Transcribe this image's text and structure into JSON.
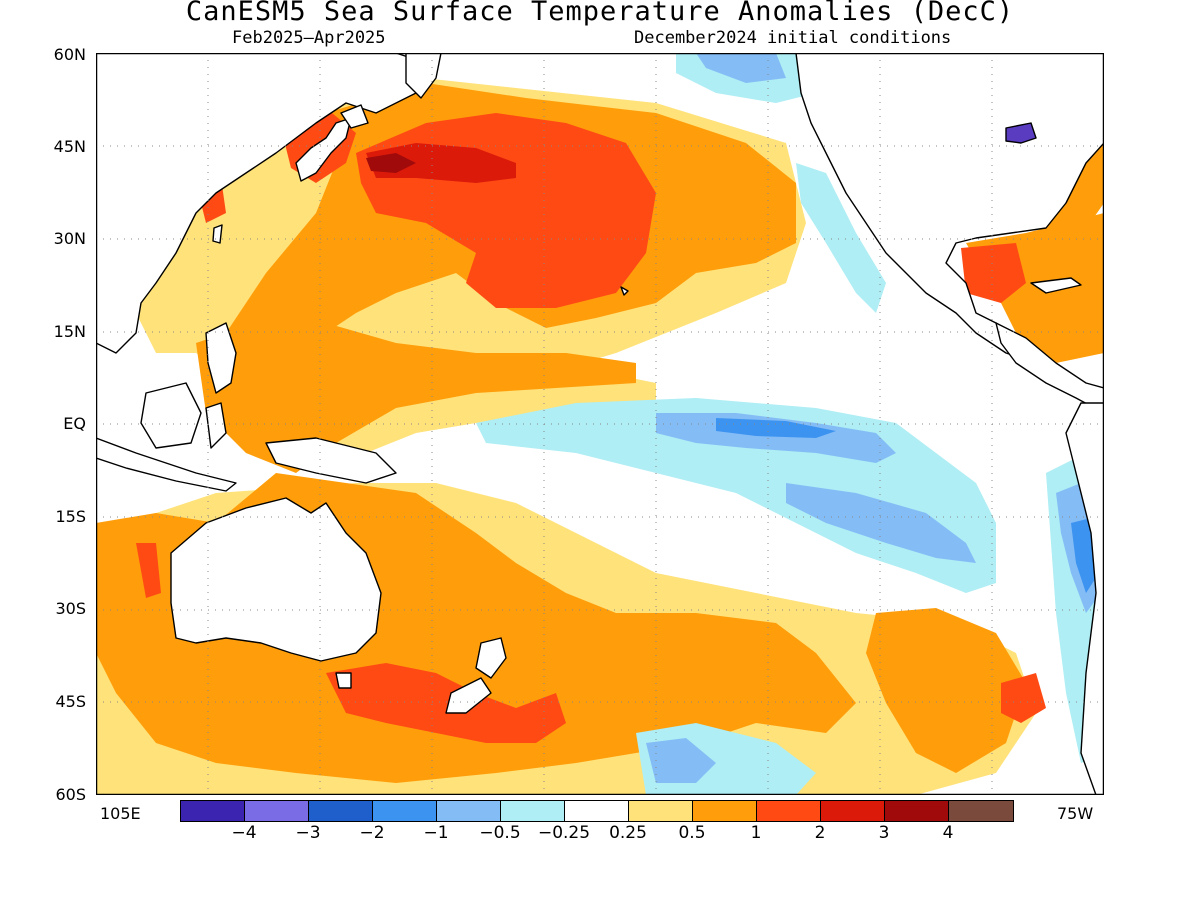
{
  "title": "CanESM5 Sea Surface Temperature Anomalies (DecC)",
  "period": "Feb2025–Apr2025",
  "initial_conditions": "December2024 initial conditions",
  "lat_labels": [
    "60N",
    "45N",
    "30N",
    "15N",
    "EQ",
    "15S",
    "30S",
    "45S",
    "60S"
  ],
  "lon_labels": {
    "west": "105E",
    "east": "75W"
  },
  "colorbar": {
    "colors": [
      "#3a24b0",
      "#7a6ce4",
      "#1f5fcc",
      "#3d93f0",
      "#84bcf6",
      "#aeeef4",
      "#ffffff",
      "#ffe27a",
      "#ff9e0a",
      "#ff4a14",
      "#dc1a0a",
      "#a00a0a",
      "#7a4a3c"
    ],
    "labels": [
      "−4",
      "−3",
      "−2",
      "−1",
      "−0.5",
      "−0.25",
      "0.25",
      "0.5",
      "1",
      "2",
      "3",
      "4"
    ]
  },
  "palette": {
    "land": "#ffffff",
    "neutral": "#ffffff",
    "pos_025": "#ffe27a",
    "pos_05": "#ff9e0a",
    "pos_1": "#ff4a14",
    "pos_2": "#dc1a0a",
    "pos_3": "#a00a0a",
    "neg_025": "#aeeef4",
    "neg_05": "#84bcf6",
    "neg_1": "#3d93f0",
    "neg_2": "#1f5fcc",
    "neg_4": "#3a24b0"
  }
}
